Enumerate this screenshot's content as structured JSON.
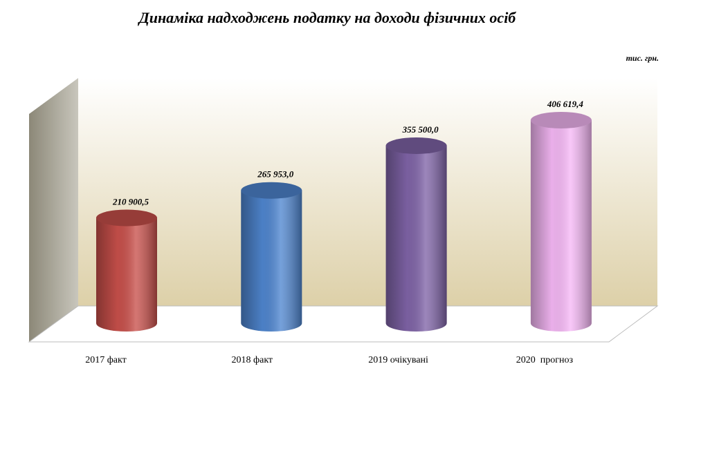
{
  "chart_data": {
    "type": "cylinder-bar",
    "title": "Динаміка надходжень податку на доходи фізичних осіб",
    "unit_label": "тис. грн.",
    "categories": [
      "2017 факт",
      "2018 факт",
      "2019 очікувані",
      "2020  прогноз"
    ],
    "values": [
      210900.5,
      265953.0,
      355500.0,
      406619.4
    ],
    "value_labels": [
      "210 900,5",
      "265 953,0",
      "355 500,0",
      "406 619,4"
    ],
    "colors": [
      "#c9504b",
      "#4f86d0",
      "#8064a8",
      "#f6b8f6"
    ]
  }
}
